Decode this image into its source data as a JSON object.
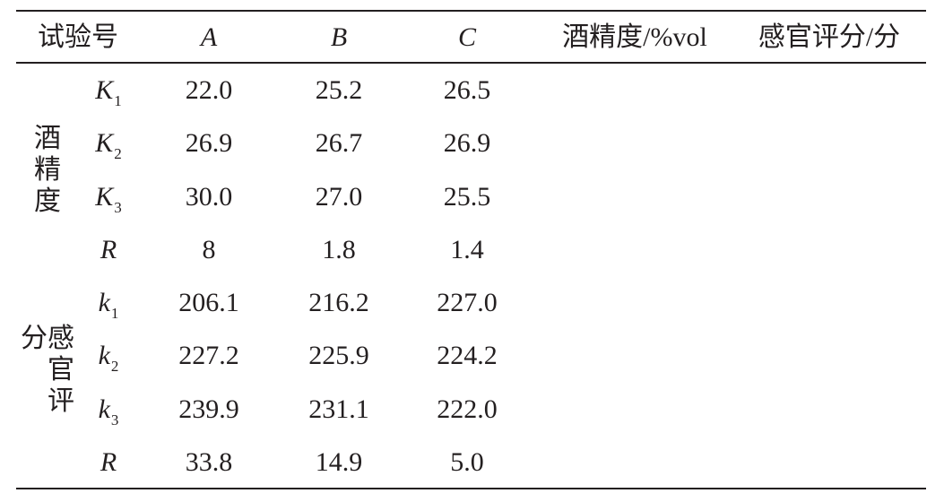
{
  "header": {
    "trial_no": "试验号",
    "columns": [
      "A",
      "B",
      "C",
      "酒精度/%vol",
      "感官评分/分"
    ]
  },
  "groups": [
    {
      "label": "酒精度",
      "rows": [
        {
          "symbol": "K",
          "sub": "1",
          "values": [
            "22.0",
            "25.2",
            "26.5"
          ]
        },
        {
          "symbol": "K",
          "sub": "2",
          "values": [
            "26.9",
            "26.7",
            "26.9"
          ]
        },
        {
          "symbol": "K",
          "sub": "3",
          "values": [
            "30.0",
            "27.0",
            "25.5"
          ]
        },
        {
          "symbol": "R",
          "values": [
            "8",
            "1.8",
            "1.4"
          ]
        }
      ]
    },
    {
      "label": "感官评分",
      "rows": [
        {
          "symbol": "k",
          "sub": "1",
          "values": [
            "206.1",
            "216.2",
            "227.0"
          ]
        },
        {
          "symbol": "k",
          "sub": "2",
          "values": [
            "227.2",
            "225.9",
            "224.2"
          ]
        },
        {
          "symbol": "k",
          "sub": "3",
          "values": [
            "239.9",
            "231.1",
            "222.0"
          ]
        },
        {
          "symbol": "R",
          "values": [
            "33.8",
            "14.9",
            "5.0"
          ]
        }
      ]
    }
  ]
}
